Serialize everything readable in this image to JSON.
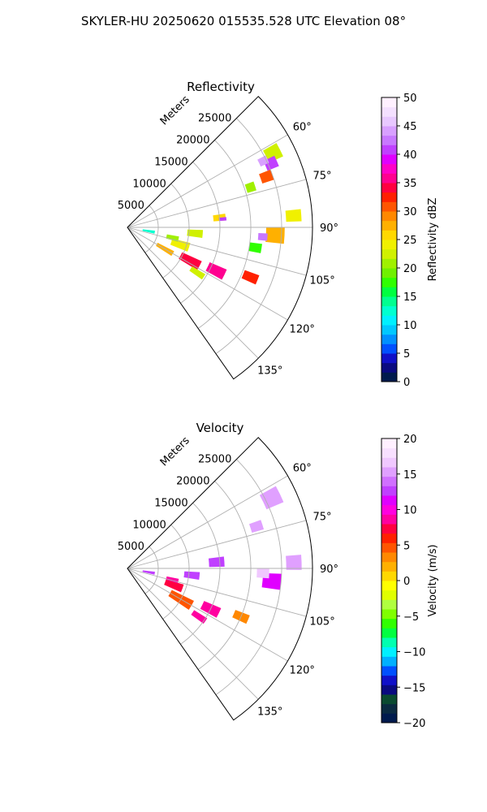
{
  "figure": {
    "suptitle": "SKYLER-HU  20250620  015535.528 UTC Elevation 08°"
  },
  "chart_data": [
    {
      "type": "heatmap",
      "projection": "polar-sector",
      "title": "Reflectivity",
      "radial_label": "Meters",
      "radial_ticks": [
        5000,
        10000,
        15000,
        20000,
        25000
      ],
      "radial_tick_labels": [
        "5000",
        "10000",
        "15000",
        "20000",
        "25000"
      ],
      "r_range": [
        0,
        30000
      ],
      "theta_ticks_deg": [
        60,
        75,
        90,
        105,
        120,
        135
      ],
      "theta_tick_labels": [
        "60°",
        "75°",
        "90°",
        "105°",
        "120°",
        "135°"
      ],
      "theta_range_deg": [
        45,
        145
      ],
      "grid": true,
      "colorbar": {
        "label": "Reflectivity dBZ",
        "vmin": 0,
        "vmax": 50,
        "ticks": [
          0,
          5,
          10,
          15,
          20,
          25,
          30,
          35,
          40,
          45,
          50
        ],
        "tick_labels": [
          "0",
          "5",
          "10",
          "15",
          "20",
          "25",
          "30",
          "35",
          "40",
          "45",
          "50"
        ],
        "colors": [
          "#001a4d",
          "#0a0a80",
          "#1010c8",
          "#0050ff",
          "#0090ff",
          "#00c8ff",
          "#00f0ff",
          "#00ffd0",
          "#00ff90",
          "#00ff40",
          "#30ff00",
          "#70f000",
          "#a0f000",
          "#d0f000",
          "#f0f000",
          "#ffd800",
          "#ffb000",
          "#ff8800",
          "#ff5500",
          "#ff2000",
          "#ff0040",
          "#ff0090",
          "#ff00c8",
          "#e000ff",
          "#c040ff",
          "#c878ff",
          "#d8a0ff",
          "#e8c8ff",
          "#f4e0ff",
          "#fff0ff"
        ]
      },
      "cells": [
        {
          "theta": 63,
          "r": 26500,
          "dtheta": 5,
          "dr": 2500,
          "value": 22
        },
        {
          "theta": 66,
          "r": 25500,
          "dtheta": 4,
          "dr": 2000,
          "value": 40
        },
        {
          "theta": 64,
          "r": 24500,
          "dtheta": 3,
          "dr": 1500,
          "value": 44
        },
        {
          "theta": 70,
          "r": 24000,
          "dtheta": 4,
          "dr": 2000,
          "value": 30
        },
        {
          "theta": 72,
          "r": 21000,
          "dtheta": 4,
          "dr": 1500,
          "value": 20
        },
        {
          "theta": 86,
          "r": 27000,
          "dtheta": 4,
          "dr": 2500,
          "value": 24
        },
        {
          "theta": 93,
          "r": 24000,
          "dtheta": 6,
          "dr": 3000,
          "value": 28
        },
        {
          "theta": 94,
          "r": 22000,
          "dtheta": 3,
          "dr": 1500,
          "value": 42
        },
        {
          "theta": 99,
          "r": 21000,
          "dtheta": 4,
          "dr": 2000,
          "value": 18
        },
        {
          "theta": 84,
          "r": 15000,
          "dtheta": 4,
          "dr": 2000,
          "value": 26
        },
        {
          "theta": 85,
          "r": 15500,
          "dtheta": 2,
          "dr": 1200,
          "value": 40
        },
        {
          "theta": 95,
          "r": 11000,
          "dtheta": 6,
          "dr": 2500,
          "value": 22
        },
        {
          "theta": 108,
          "r": 9000,
          "dtheta": 8,
          "dr": 3000,
          "value": 24
        },
        {
          "theta": 118,
          "r": 11500,
          "dtheta": 7,
          "dr": 3500,
          "value": 34
        },
        {
          "theta": 116,
          "r": 16000,
          "dtheta": 6,
          "dr": 3000,
          "value": 36
        },
        {
          "theta": 112,
          "r": 21500,
          "dtheta": 4,
          "dr": 2500,
          "value": 32
        },
        {
          "theta": 120,
          "r": 7000,
          "dtheta": 6,
          "dr": 3000,
          "value": 28
        },
        {
          "theta": 103,
          "r": 7500,
          "dtheta": 6,
          "dr": 2000,
          "value": 20
        },
        {
          "theta": 100,
          "r": 3500,
          "dtheta": 6,
          "dr": 2000,
          "value": 12
        },
        {
          "theta": 123,
          "r": 13500,
          "dtheta": 4,
          "dr": 2500,
          "value": 22
        }
      ]
    },
    {
      "type": "heatmap",
      "projection": "polar-sector",
      "title": "Velocity",
      "radial_label": "Meters",
      "radial_ticks": [
        5000,
        10000,
        15000,
        20000,
        25000
      ],
      "radial_tick_labels": [
        "5000",
        "10000",
        "15000",
        "20000",
        "25000"
      ],
      "r_range": [
        0,
        30000
      ],
      "theta_ticks_deg": [
        60,
        75,
        90,
        105,
        120,
        135
      ],
      "theta_tick_labels": [
        "60°",
        "75°",
        "90°",
        "105°",
        "120°",
        "135°"
      ],
      "theta_range_deg": [
        45,
        145
      ],
      "grid": true,
      "colorbar": {
        "label": "Velocity (m/s)",
        "vmin": -20,
        "vmax": 20,
        "ticks": [
          -20,
          -15,
          -10,
          -5,
          0,
          5,
          10,
          15,
          20
        ],
        "tick_labels": [
          "−20",
          "−15",
          "−10",
          "−5",
          "0",
          "5",
          "10",
          "15",
          "20"
        ],
        "colors": [
          "#001a4d",
          "#0a2a40",
          "#0a4a30",
          "#0a0a80",
          "#1010c8",
          "#0050ff",
          "#00b0ff",
          "#00f0ff",
          "#00ffb0",
          "#00ff40",
          "#30ff00",
          "#80ff00",
          "#b0ff40",
          "#e0ff00",
          "#ffff00",
          "#ffd800",
          "#ffb000",
          "#ff8800",
          "#ff5500",
          "#ff2000",
          "#ff0040",
          "#ff00a0",
          "#ff00e0",
          "#e000ff",
          "#c040ff",
          "#d070ff",
          "#e0a0ff",
          "#f0c8ff",
          "#f8e0ff",
          "#fff0ff"
        ]
      },
      "cells": [
        {
          "theta": 64,
          "r": 26000,
          "dtheta": 6,
          "dr": 3000,
          "value": 15
        },
        {
          "theta": 72,
          "r": 22000,
          "dtheta": 4,
          "dr": 2000,
          "value": 15
        },
        {
          "theta": 88,
          "r": 27000,
          "dtheta": 5,
          "dr": 2500,
          "value": 15
        },
        {
          "theta": 95,
          "r": 23500,
          "dtheta": 6,
          "dr": 3000,
          "value": 11
        },
        {
          "theta": 92,
          "r": 22000,
          "dtheta": 4,
          "dr": 2000,
          "value": 16
        },
        {
          "theta": 86,
          "r": 14500,
          "dtheta": 6,
          "dr": 2500,
          "value": 13
        },
        {
          "theta": 96,
          "r": 10500,
          "dtheta": 6,
          "dr": 2500,
          "value": 13
        },
        {
          "theta": 110,
          "r": 8000,
          "dtheta": 8,
          "dr": 3000,
          "value": 7
        },
        {
          "theta": 120,
          "r": 10000,
          "dtheta": 8,
          "dr": 4000,
          "value": 5
        },
        {
          "theta": 116,
          "r": 15000,
          "dtheta": 6,
          "dr": 3000,
          "value": 8
        },
        {
          "theta": 113,
          "r": 20000,
          "dtheta": 4,
          "dr": 2500,
          "value": 3
        },
        {
          "theta": 124,
          "r": 14000,
          "dtheta": 4,
          "dr": 2500,
          "value": 8
        },
        {
          "theta": 100,
          "r": 3500,
          "dtheta": 6,
          "dr": 2000,
          "value": 12
        },
        {
          "theta": 104,
          "r": 7500,
          "dtheta": 5,
          "dr": 2000,
          "value": 9
        }
      ]
    }
  ]
}
